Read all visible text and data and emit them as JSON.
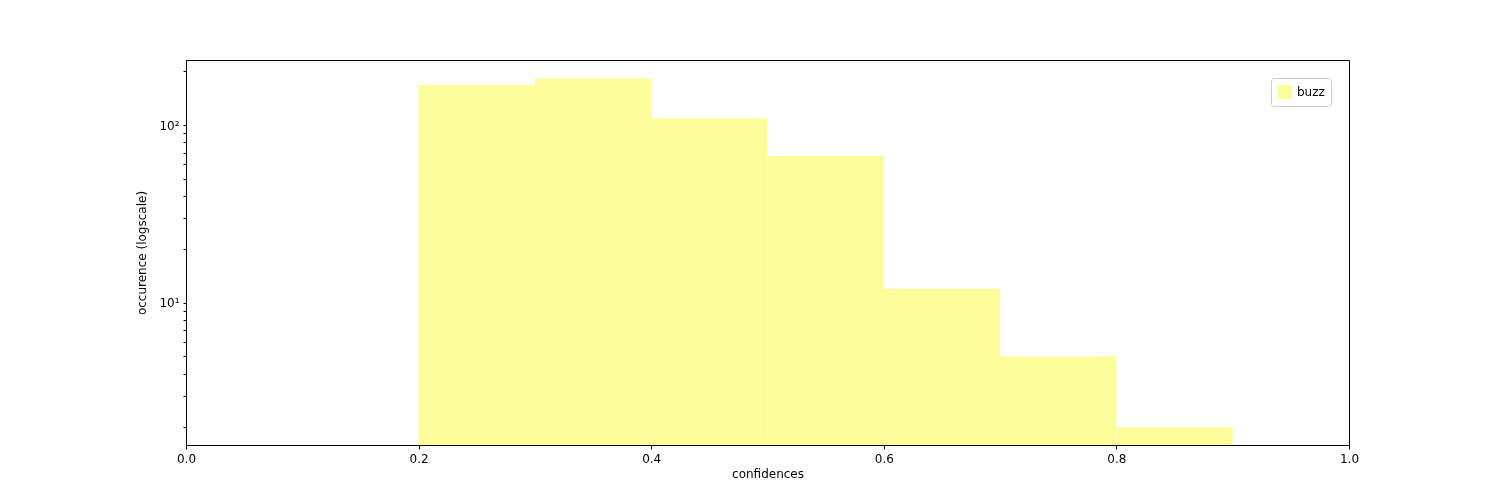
{
  "chart_data": {
    "type": "histogram",
    "xlabel": "confidences",
    "ylabel": "occurence (logscale)",
    "bins": [
      0.2,
      0.3,
      0.4,
      0.5,
      0.6,
      0.7,
      0.8,
      0.9
    ],
    "series": [
      {
        "name": "buzz",
        "color": "#fcfc9a",
        "values": [
          168,
          183,
          109,
          67,
          12,
          5,
          2
        ]
      }
    ],
    "log": "y",
    "legend": "top right",
    "grid": false,
    "xlim": [
      0,
      1
    ],
    "xticks": [
      {
        "value": 0,
        "label": "0.0"
      },
      0.2,
      0.4,
      0.6,
      0.8,
      {
        "value": 1,
        "label": "1.0"
      }
    ],
    "ylim": [
      1.59,
      232
    ],
    "yticks": [
      {
        "value": 2,
        "label": null
      },
      {
        "value": 3,
        "label": null
      },
      {
        "value": 4,
        "label": null
      },
      {
        "value": 5,
        "label": null
      },
      {
        "value": 6,
        "label": null
      },
      {
        "value": 7,
        "label": null
      },
      {
        "value": 8,
        "label": null
      },
      {
        "value": 9,
        "label": null
      },
      {
        "value": 10,
        "label": "10¹"
      },
      {
        "value": 20,
        "label": null
      },
      {
        "value": 30,
        "label": null
      },
      {
        "value": 40,
        "label": null
      },
      {
        "value": 50,
        "label": null
      },
      {
        "value": 60,
        "label": null
      },
      {
        "value": 70,
        "label": null
      },
      {
        "value": 80,
        "label": null
      },
      {
        "value": 90,
        "label": null
      },
      {
        "value": 100,
        "label": "10²"
      },
      {
        "value": 200,
        "label": null
      }
    ]
  }
}
